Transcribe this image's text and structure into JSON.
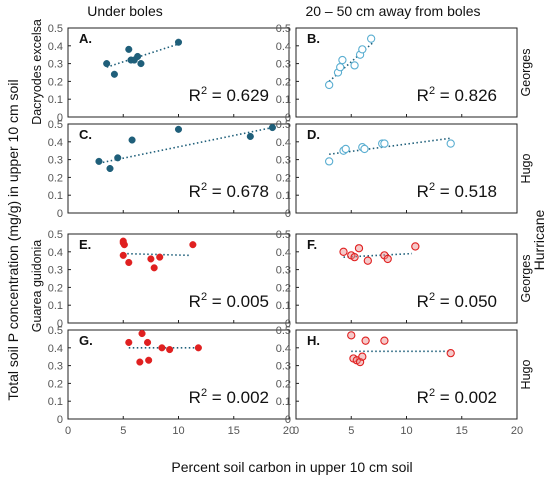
{
  "chart_data": {
    "type": "scatter",
    "column_titles": [
      "Under boles",
      "20 – 50 cm away from boles"
    ],
    "ylabel": "Total soil P concentration (mg/g) in upper 10 cm soil",
    "species_labels": [
      "Dacryodes excelsa",
      "Guarea guidonia"
    ],
    "hurricane_label": "Hurricane",
    "xlabel": "Percent soil carbon in upper 10 cm soil",
    "xlim": [
      0,
      20
    ],
    "xticks": [
      "0",
      "5",
      "10",
      "15",
      "20"
    ],
    "colors": {
      "dacryodes": "#1f5f7a",
      "dacryodes_open": "#5aaed1",
      "guarea": "#e02020",
      "guarea_open": "#e88a8a",
      "trend": "#1f5f7a"
    },
    "panels": [
      {
        "label": "A.",
        "hurricane": "Georges",
        "species": "Dacryodes excelsa",
        "position": "Under boles",
        "marker": "filled",
        "r2_base": "R",
        "r2_exp": "2",
        "r2_value": " = 0.629",
        "ylim": [
          0,
          0.5
        ],
        "yticks": [
          "0",
          "0.1",
          "0.2",
          "0.3",
          "0.4",
          "0.5"
        ],
        "points": [
          [
            3.5,
            0.3
          ],
          [
            4.2,
            0.24
          ],
          [
            5.5,
            0.38
          ],
          [
            5.7,
            0.32
          ],
          [
            6.0,
            0.32
          ],
          [
            6.3,
            0.34
          ],
          [
            6.6,
            0.3
          ],
          [
            10.0,
            0.42
          ]
        ],
        "trend": [
          [
            3.5,
            0.28
          ],
          [
            10.0,
            0.41
          ]
        ]
      },
      {
        "label": "B.",
        "hurricane": "Georges",
        "species": "Dacryodes excelsa",
        "position": "20 – 50 cm away from boles",
        "marker": "open",
        "r2_base": "R",
        "r2_exp": "2",
        "r2_value": " = 0.826",
        "ylim": [
          0,
          0.5
        ],
        "yticks": [
          "0",
          "0.1",
          "0.2",
          "0.3",
          "0.4",
          "0.5"
        ],
        "points": [
          [
            3.0,
            0.18
          ],
          [
            3.8,
            0.25
          ],
          [
            4.0,
            0.28
          ],
          [
            4.2,
            0.32
          ],
          [
            5.3,
            0.29
          ],
          [
            5.8,
            0.35
          ],
          [
            6.0,
            0.38
          ],
          [
            6.8,
            0.44
          ]
        ],
        "trend": [
          [
            3.0,
            0.2
          ],
          [
            7.0,
            0.42
          ]
        ]
      },
      {
        "label": "C.",
        "hurricane": "Hugo",
        "species": "Dacryodes excelsa",
        "position": "Under boles",
        "marker": "filled",
        "r2_base": "R",
        "r2_exp": "2",
        "r2_value": " = 0.678",
        "ylim": [
          0,
          0.5
        ],
        "yticks": [
          "0",
          "0.1",
          "0.2",
          "0.3",
          "0.4",
          "0.5"
        ],
        "points": [
          [
            2.8,
            0.29
          ],
          [
            3.8,
            0.25
          ],
          [
            4.5,
            0.31
          ],
          [
            5.8,
            0.41
          ],
          [
            10.0,
            0.47
          ],
          [
            16.5,
            0.43
          ],
          [
            18.5,
            0.48
          ]
        ],
        "trend": [
          [
            2.8,
            0.28
          ],
          [
            18.5,
            0.48
          ]
        ]
      },
      {
        "label": "D.",
        "hurricane": "Hugo",
        "species": "Dacryodes excelsa",
        "position": "20 – 50 cm away from boles",
        "marker": "open",
        "r2_base": "R",
        "r2_exp": "2",
        "r2_value": " = 0.518",
        "ylim": [
          0,
          0.5
        ],
        "yticks": [
          "0",
          "0.1",
          "0.2",
          "0.3",
          "0.4",
          "0.5"
        ],
        "points": [
          [
            3.0,
            0.29
          ],
          [
            4.3,
            0.35
          ],
          [
            4.5,
            0.36
          ],
          [
            6.0,
            0.37
          ],
          [
            6.2,
            0.36
          ],
          [
            7.8,
            0.39
          ],
          [
            8.0,
            0.39
          ],
          [
            14.0,
            0.39
          ]
        ],
        "trend": [
          [
            3.0,
            0.33
          ],
          [
            14.0,
            0.42
          ]
        ]
      },
      {
        "label": "E.",
        "hurricane": "Georges",
        "species": "Guarea guidonia",
        "position": "Under boles",
        "marker": "filled",
        "r2_base": "R",
        "r2_exp": "2",
        "r2_value": " = 0.005",
        "ylim": [
          0,
          0.5
        ],
        "yticks": [
          "0",
          "0.1",
          "0.2",
          "0.3",
          "0.4",
          "0.5"
        ],
        "points": [
          [
            5.0,
            0.46
          ],
          [
            5.0,
            0.45
          ],
          [
            5.1,
            0.44
          ],
          [
            5.0,
            0.38
          ],
          [
            5.5,
            0.34
          ],
          [
            7.5,
            0.36
          ],
          [
            7.8,
            0.31
          ],
          [
            8.3,
            0.37
          ],
          [
            11.3,
            0.44
          ]
        ],
        "trend": [
          [
            5.0,
            0.39
          ],
          [
            11.0,
            0.38
          ]
        ]
      },
      {
        "label": "F.",
        "hurricane": "Georges",
        "species": "Guarea guidonia",
        "position": "20 – 50 cm away from boles",
        "marker": "open",
        "r2_base": "R",
        "r2_exp": "2",
        "r2_value": " = 0.050",
        "ylim": [
          0,
          0.5
        ],
        "yticks": [
          "0",
          "0.1",
          "0.2",
          "0.3",
          "0.4",
          "0.5"
        ],
        "points": [
          [
            4.3,
            0.4
          ],
          [
            5.0,
            0.38
          ],
          [
            5.3,
            0.37
          ],
          [
            5.7,
            0.42
          ],
          [
            6.5,
            0.35
          ],
          [
            8.0,
            0.38
          ],
          [
            8.3,
            0.36
          ],
          [
            10.8,
            0.43
          ]
        ],
        "trend": [
          [
            4.3,
            0.37
          ],
          [
            10.5,
            0.39
          ]
        ]
      },
      {
        "label": "G.",
        "hurricane": "Hugo",
        "species": "Guarea guidonia",
        "position": "Under boles",
        "marker": "filled",
        "r2_base": "R",
        "r2_exp": "2",
        "r2_value": " = 0.002",
        "ylim": [
          0,
          0.5
        ],
        "yticks": [
          "0",
          "0.1",
          "0.2",
          "0.3",
          "0.4",
          "0.5"
        ],
        "points": [
          [
            5.5,
            0.43
          ],
          [
            6.5,
            0.32
          ],
          [
            6.7,
            0.48
          ],
          [
            7.2,
            0.43
          ],
          [
            7.3,
            0.33
          ],
          [
            8.5,
            0.4
          ],
          [
            9.2,
            0.39
          ],
          [
            11.8,
            0.4
          ]
        ],
        "trend": [
          [
            5.5,
            0.4
          ],
          [
            11.8,
            0.4
          ]
        ]
      },
      {
        "label": "H.",
        "hurricane": "Hugo",
        "species": "Guarea guidonia",
        "position": "20 – 50 cm away from boles",
        "marker": "open",
        "r2_base": "R",
        "r2_exp": "2",
        "r2_value": " = 0.002",
        "ylim": [
          0,
          0.5
        ],
        "yticks": [
          "0",
          "0.1",
          "0.2",
          "0.3",
          "0.4",
          "0.5"
        ],
        "points": [
          [
            5.0,
            0.47
          ],
          [
            5.2,
            0.34
          ],
          [
            5.5,
            0.33
          ],
          [
            5.8,
            0.32
          ],
          [
            6.0,
            0.35
          ],
          [
            6.3,
            0.44
          ],
          [
            8.0,
            0.44
          ],
          [
            14.0,
            0.37
          ]
        ],
        "trend": [
          [
            5.0,
            0.38
          ],
          [
            14.0,
            0.38
          ]
        ]
      }
    ]
  }
}
